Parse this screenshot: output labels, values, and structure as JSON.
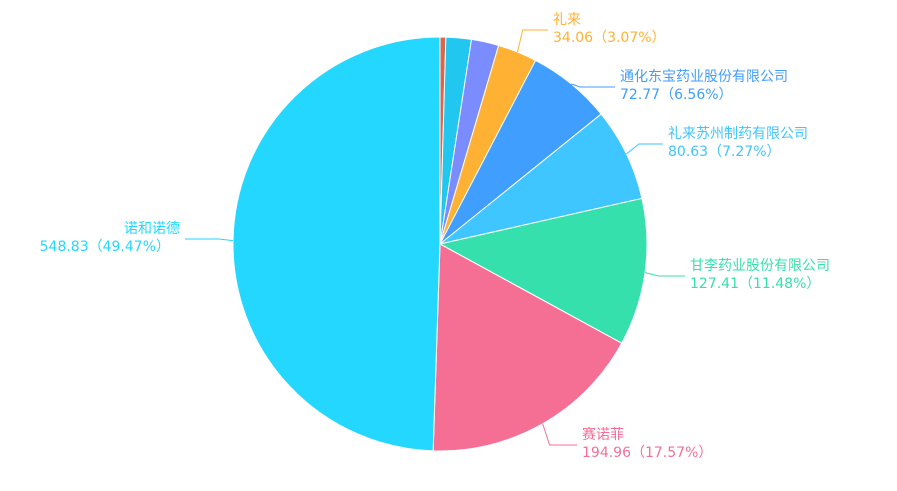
{
  "chart_data": {
    "type": "pie",
    "categories": [
      null,
      null,
      null,
      "礼来",
      "通化东宝药业股份有限公司",
      "礼来苏州制药有限公司",
      "甘李药业股份有限公司",
      "赛诺菲",
      "诺和诺德"
    ],
    "values": [
      5,
      22,
      23.7,
      34.06,
      72.77,
      80.63,
      127.41,
      194.96,
      548.83
    ],
    "value_labels": [
      null,
      null,
      null,
      "34.06（3.07%）",
      "72.77（6.56%）",
      "80.63（7.27%）",
      "127.41（11.48%）",
      "194.96（17.57%）",
      "548.83（49.47%）"
    ],
    "colors": [
      "#d9674e",
      "#22c7f0",
      "#7b8cff",
      "#ffb133",
      "#409eff",
      "#3fc5ff",
      "#36e0ad",
      "#f56f95",
      "#23d7ff"
    ]
  }
}
